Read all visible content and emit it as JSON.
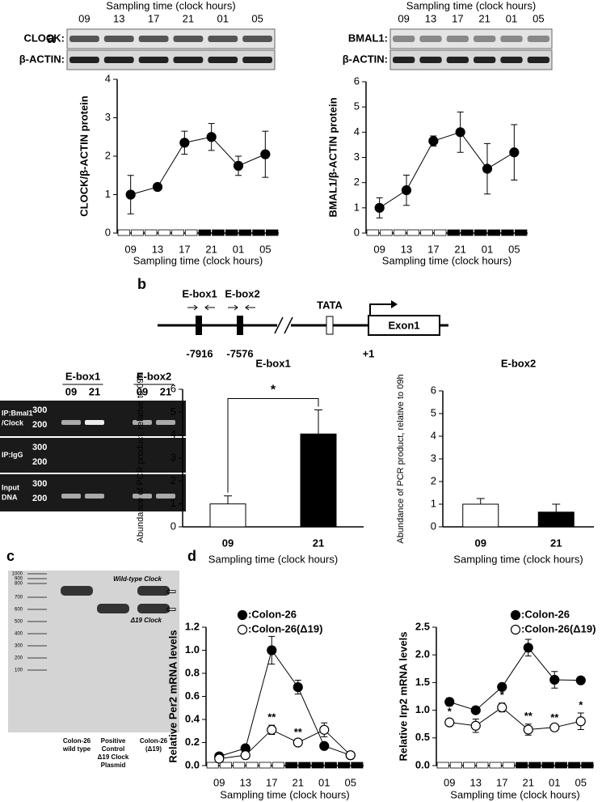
{
  "panels": {
    "a": "a",
    "b": "b",
    "c": "c",
    "d": "d"
  },
  "blots": [
    {
      "header": "Sampling time (clock hours)",
      "lanes": [
        "09",
        "13",
        "17",
        "21",
        "01",
        "05"
      ],
      "rows": [
        "CLOCK:",
        "β-ACTIN:"
      ]
    },
    {
      "header": "Sampling time (clock hours)",
      "lanes": [
        "09",
        "13",
        "17",
        "21",
        "01",
        "05"
      ],
      "rows": [
        "BMAL1:",
        "β-ACTIN:"
      ]
    }
  ],
  "promoter": {
    "elements": [
      "E-box1",
      "E-box2"
    ],
    "positions": [
      "-7916",
      "-7576"
    ],
    "tata": "TATA",
    "exon": "Exon1",
    "start": "+1"
  },
  "chip_gel": {
    "groups": [
      {
        "name": "E-box1",
        "lanes": [
          "09",
          "21"
        ]
      },
      {
        "name": "E-box2",
        "lanes": [
          "09",
          "21"
        ]
      }
    ],
    "rows": [
      [
        "IP:Bmal1",
        "/Clock"
      ],
      [
        "IP:IgG"
      ],
      [
        "Input",
        "DNA"
      ]
    ],
    "markers": [
      "300",
      "200"
    ]
  },
  "genotyping_gel": {
    "ladder": [
      "1000",
      "900",
      "800",
      "700",
      "600",
      "500",
      "400",
      "300",
      "200",
      "100"
    ],
    "bands": [
      "Wild-type Clock",
      "Δ19 Clock"
    ],
    "lanes": [
      [
        "Colon-26",
        "wild type"
      ],
      [
        "Positive",
        "Control",
        "Δ19 Clock",
        "Plasmid"
      ],
      [
        "Colon-26",
        "(Δ19)"
      ]
    ]
  },
  "chart_data": [
    {
      "type": "line",
      "ylabel": "CLOCK/β-ACTIN protein",
      "xlabel": "Sampling time (clock hours)",
      "categories": [
        "09",
        "13",
        "17",
        "21",
        "01",
        "05"
      ],
      "ylim": [
        0,
        4
      ],
      "yticks": [
        0,
        1,
        2,
        3,
        4
      ],
      "series": [
        {
          "name": "CLOCK",
          "color": "#000000",
          "values": [
            1.0,
            1.2,
            2.35,
            2.5,
            1.75,
            2.05
          ],
          "errors": [
            0.5,
            0.05,
            0.3,
            0.35,
            0.25,
            0.6
          ]
        }
      ]
    },
    {
      "type": "line",
      "ylabel": "BMAL1/β-ACTIN protein",
      "xlabel": "Sampling time (clock hours)",
      "categories": [
        "09",
        "13",
        "17",
        "21",
        "01",
        "05"
      ],
      "ylim": [
        0,
        6
      ],
      "yticks": [
        0,
        1,
        2,
        3,
        4,
        5,
        6
      ],
      "series": [
        {
          "name": "BMAL1",
          "color": "#000000",
          "values": [
            1.0,
            1.7,
            3.65,
            4.0,
            2.55,
            3.2
          ],
          "errors": [
            0.4,
            0.6,
            0.2,
            0.8,
            1.0,
            1.1
          ]
        }
      ]
    },
    {
      "type": "bar",
      "title": "E-box1",
      "ylabel": "Abundance of PCR product, relative to 09h",
      "xlabel": "Sampling time (clock hours)",
      "categories": [
        "09",
        "21"
      ],
      "ylim": [
        0,
        6
      ],
      "yticks": [
        0,
        1,
        2,
        3,
        4,
        5,
        6
      ],
      "colors": [
        "#ffffff",
        "#000000"
      ],
      "annotation": "*",
      "series": [
        {
          "name": "E-box1",
          "values": [
            1.0,
            4.05
          ],
          "errors": [
            0.35,
            1.05
          ]
        }
      ]
    },
    {
      "type": "bar",
      "title": "E-box2",
      "ylabel": "Abundance of PCR product, relative to 09h",
      "xlabel": "Sampling time (clock hours)",
      "categories": [
        "09",
        "21"
      ],
      "ylim": [
        0,
        6
      ],
      "yticks": [
        0,
        1,
        2,
        3,
        4,
        5,
        6
      ],
      "colors": [
        "#ffffff",
        "#000000"
      ],
      "series": [
        {
          "name": "E-box2",
          "values": [
            1.0,
            0.65
          ],
          "errors": [
            0.25,
            0.35
          ]
        }
      ]
    },
    {
      "type": "line",
      "ylabel": "Relative Per2 mRNA levels",
      "xlabel": "Sampling time (clock hours)",
      "categories": [
        "09",
        "13",
        "17",
        "21",
        "01",
        "05"
      ],
      "ylim": [
        0,
        1.2
      ],
      "yticks": [
        {
          "value": 0,
          "label": "0.0"
        },
        0.2,
        0.4,
        0.6,
        0.8,
        {
          "value": 1,
          "label": "1.0"
        },
        1.2
      ],
      "series": [
        {
          "name": ":Colon-26",
          "color": "#000000",
          "values": [
            0.08,
            0.15,
            1.0,
            0.68,
            0.17,
            0.09
          ],
          "errors": [
            0.02,
            0.02,
            0.12,
            0.06,
            0.02,
            0.01
          ]
        },
        {
          "name": ":Colon-26(Δ19)",
          "color": "#ffffff",
          "values": [
            0.06,
            0.09,
            0.31,
            0.2,
            0.31,
            0.09
          ],
          "errors": [
            0.02,
            0.01,
            0.04,
            0.02,
            0.06,
            0.01
          ],
          "significance": [
            null,
            null,
            "**",
            "**",
            null,
            null
          ]
        }
      ]
    },
    {
      "type": "line",
      "ylabel": "Relative Irp2 mRNA levels",
      "xlabel": "Sampling time (clock hours)",
      "categories": [
        "09",
        "13",
        "17",
        "21",
        "01",
        "05"
      ],
      "ylim": [
        0,
        2.5
      ],
      "yticks": [
        {
          "value": 0,
          "label": "0.0"
        },
        0.5,
        {
          "value": 1,
          "label": "1.0"
        },
        1.5,
        {
          "value": 2,
          "label": "2.0"
        },
        2.5
      ],
      "series": [
        {
          "name": ":Colon-26",
          "color": "#000000",
          "values": [
            1.15,
            1.0,
            1.42,
            2.13,
            1.55,
            1.54
          ],
          "errors": [
            0.07,
            0.03,
            0.04,
            0.15,
            0.15,
            0.05
          ]
        },
        {
          "name": ":Colon-26(Δ19)",
          "color": "#ffffff",
          "values": [
            0.78,
            0.72,
            1.05,
            0.65,
            0.69,
            0.8
          ],
          "errors": [
            0.05,
            0.12,
            0.08,
            0.1,
            0.03,
            0.15
          ],
          "significance": [
            "*",
            null,
            "*",
            "**",
            "**",
            "*"
          ]
        }
      ]
    }
  ]
}
